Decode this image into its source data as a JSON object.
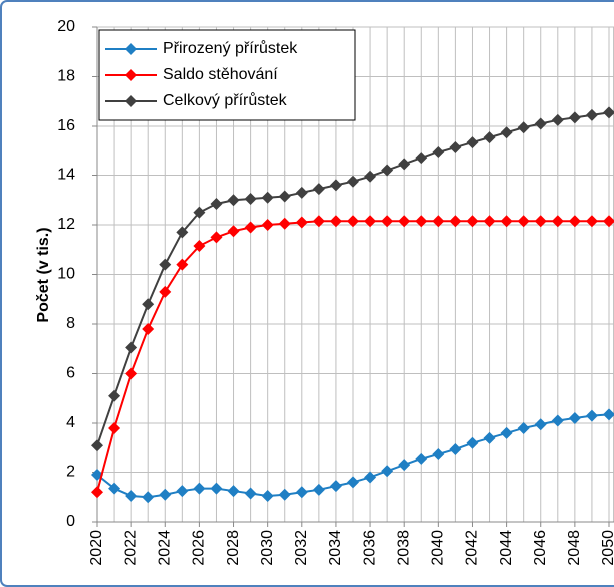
{
  "chart_data": {
    "type": "line",
    "y_label": "Počet (v tis.)",
    "x": [
      2020,
      2021,
      2022,
      2023,
      2024,
      2025,
      2026,
      2027,
      2028,
      2029,
      2030,
      2031,
      2032,
      2033,
      2034,
      2035,
      2036,
      2037,
      2038,
      2039,
      2040,
      2041,
      2042,
      2043,
      2044,
      2045,
      2046,
      2047,
      2048,
      2049,
      2050
    ],
    "series": [
      {
        "name": "Přirozený přírůstek",
        "color": "#1f7fc4",
        "values": [
          1.9,
          1.35,
          1.05,
          1.0,
          1.1,
          1.25,
          1.35,
          1.35,
          1.25,
          1.15,
          1.05,
          1.1,
          1.2,
          1.3,
          1.45,
          1.6,
          1.8,
          2.05,
          2.3,
          2.55,
          2.75,
          2.95,
          3.2,
          3.4,
          3.6,
          3.8,
          3.95,
          4.1,
          4.2,
          4.3,
          4.35
        ]
      },
      {
        "name": "Saldo stěhování",
        "color": "#ff0000",
        "values": [
          1.2,
          3.8,
          6.0,
          7.8,
          9.3,
          10.4,
          11.15,
          11.5,
          11.75,
          11.9,
          12.0,
          12.05,
          12.1,
          12.15,
          12.15,
          12.15,
          12.15,
          12.15,
          12.15,
          12.15,
          12.15,
          12.15,
          12.15,
          12.15,
          12.15,
          12.15,
          12.15,
          12.15,
          12.15,
          12.15,
          12.15
        ]
      },
      {
        "name": "Celkový přírůstek",
        "color": "#404040",
        "values": [
          3.1,
          5.1,
          7.05,
          8.8,
          10.4,
          11.7,
          12.5,
          12.85,
          13.0,
          13.05,
          13.1,
          13.15,
          13.3,
          13.45,
          13.6,
          13.75,
          13.95,
          14.2,
          14.45,
          14.7,
          14.95,
          15.15,
          15.35,
          15.55,
          15.75,
          15.95,
          16.1,
          16.25,
          16.35,
          16.45,
          16.55
        ]
      }
    ],
    "xlim": [
      2020,
      2050
    ],
    "xticks": [
      2020,
      2022,
      2024,
      2026,
      2028,
      2030,
      2032,
      2034,
      2036,
      2038,
      2040,
      2042,
      2044,
      2046,
      2048,
      2050
    ],
    "ylim": [
      0,
      20
    ],
    "yticks": [
      0,
      2,
      4,
      6,
      8,
      10,
      12,
      14,
      16,
      18,
      20
    ],
    "grid": true,
    "legend": "upper-left"
  }
}
